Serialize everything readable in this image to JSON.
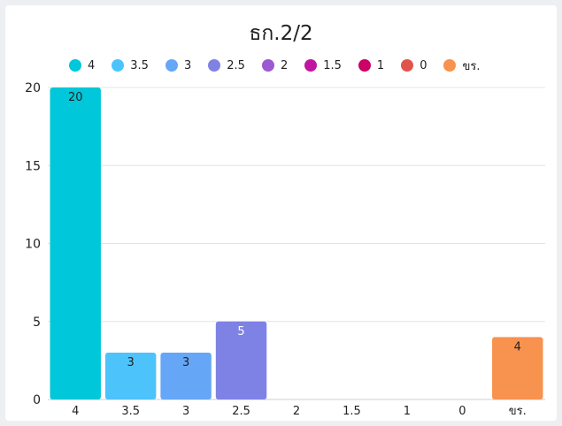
{
  "chart_data": {
    "type": "bar",
    "title": "ธก.2/2",
    "categories": [
      "4",
      "3.5",
      "3",
      "2.5",
      "2",
      "1.5",
      "1",
      "0",
      "ขร."
    ],
    "values": [
      20,
      3,
      3,
      5,
      0,
      0,
      0,
      0,
      4
    ],
    "colors": [
      "#00c7d9",
      "#4dc3fc",
      "#66a6f7",
      "#7f82e5",
      "#9b59d2",
      "#c214a1",
      "#cc0066",
      "#e0554a",
      "#f7924f"
    ],
    "label_colors": [
      "#222222",
      "#222222",
      "#222222",
      "#ffffff",
      "#222222",
      "#222222",
      "#222222",
      "#222222",
      "#222222"
    ],
    "yticks": [
      "0",
      "5",
      "10",
      "15",
      "20"
    ],
    "ylim": [
      0,
      20
    ],
    "legend_position": "top",
    "grid": true
  }
}
